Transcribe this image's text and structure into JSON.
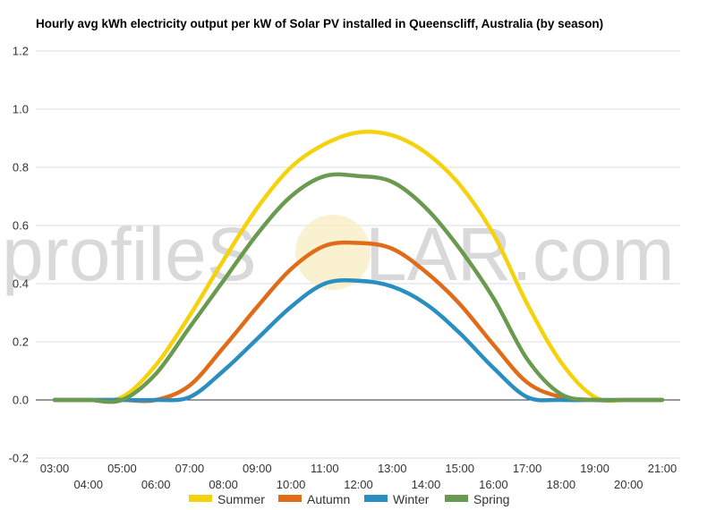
{
  "watermark": {
    "left": "profileS",
    "right": "LAR.com"
  },
  "chart_data": {
    "type": "line",
    "title": "Hourly avg kWh electricity output per kW of Solar PV installed in Queenscliff, Australia (by season)",
    "xlabel": "",
    "ylabel": "",
    "ylim": [
      -0.2,
      1.2
    ],
    "yticks": [
      "-0.2",
      "0.0",
      "0.2",
      "0.4",
      "0.6",
      "0.8",
      "1.0",
      "1.2"
    ],
    "grid": true,
    "legend_position": "bottom",
    "x": [
      "03:00",
      "04:00",
      "05:00",
      "06:00",
      "07:00",
      "08:00",
      "09:00",
      "10:00",
      "11:00",
      "12:00",
      "13:00",
      "14:00",
      "15:00",
      "16:00",
      "17:00",
      "18:00",
      "19:00",
      "20:00",
      "21:00"
    ],
    "series": [
      {
        "name": "Summer",
        "color": "#f5d20e",
        "values": [
          0,
          0,
          0.01,
          0.12,
          0.29,
          0.48,
          0.66,
          0.8,
          0.88,
          0.92,
          0.91,
          0.85,
          0.74,
          0.57,
          0.33,
          0.13,
          0.01,
          0,
          0
        ]
      },
      {
        "name": "Autumn",
        "color": "#e06c1a",
        "values": [
          0,
          0,
          0,
          0,
          0.05,
          0.18,
          0.32,
          0.45,
          0.53,
          0.54,
          0.52,
          0.44,
          0.33,
          0.19,
          0.06,
          0.01,
          0,
          0,
          0
        ]
      },
      {
        "name": "Winter",
        "color": "#2a8fc0",
        "values": [
          0,
          0,
          0,
          0,
          0.01,
          0.1,
          0.21,
          0.32,
          0.4,
          0.41,
          0.39,
          0.33,
          0.23,
          0.11,
          0.01,
          0,
          0,
          0,
          0
        ]
      },
      {
        "name": "Spring",
        "color": "#6a9a4f",
        "values": [
          0,
          0,
          0,
          0.09,
          0.25,
          0.41,
          0.57,
          0.7,
          0.77,
          0.77,
          0.75,
          0.66,
          0.52,
          0.35,
          0.14,
          0.02,
          0,
          0,
          0
        ]
      }
    ]
  }
}
